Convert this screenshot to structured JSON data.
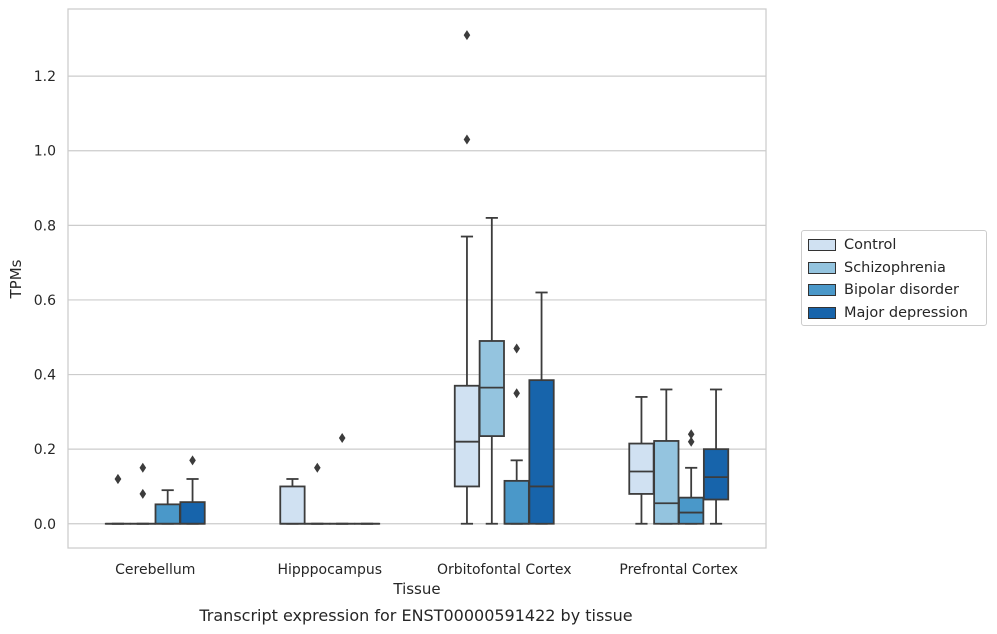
{
  "chart_data": {
    "type": "box",
    "title": "Transcript expression for ENST00000591422 by tissue",
    "xlabel": "Tissue",
    "ylabel": "TPMs",
    "ylim": [
      -0.065,
      1.38
    ],
    "yticks": [
      "0.0",
      "0.2",
      "0.4",
      "0.6",
      "0.8",
      "1.0",
      "1.2"
    ],
    "grid": true,
    "legend_position": "right",
    "categories": [
      "Cerebellum",
      "Hipppocampus",
      "Orbitofontal Cortex",
      "Prefrontal Cortex"
    ],
    "series": [
      {
        "name": "Control",
        "color": "#d0e1f2",
        "boxes": [
          {
            "q1": 0,
            "median": 0,
            "q3": 0,
            "whisker_low": 0,
            "whisker_high": 0,
            "outliers": [
              0.12,
              0.12
            ]
          },
          {
            "q1": 0,
            "median": 0,
            "q3": 0.1,
            "whisker_low": 0,
            "whisker_high": 0.12,
            "outliers": []
          },
          {
            "q1": 0.1,
            "median": 0.22,
            "q3": 0.37,
            "whisker_low": 0,
            "whisker_high": 0.77,
            "outliers": [
              1.03,
              1.31
            ]
          },
          {
            "q1": 0.08,
            "median": 0.14,
            "q3": 0.215,
            "whisker_low": 0,
            "whisker_high": 0.34,
            "outliers": []
          }
        ]
      },
      {
        "name": "Schizophrenia",
        "color": "#94c4df",
        "boxes": [
          {
            "q1": 0,
            "median": 0,
            "q3": 0,
            "whisker_low": 0,
            "whisker_high": 0,
            "outliers": [
              0.08,
              0.15
            ]
          },
          {
            "q1": 0,
            "median": 0,
            "q3": 0,
            "whisker_low": 0,
            "whisker_high": 0,
            "outliers": [
              0.15
            ]
          },
          {
            "q1": 0.235,
            "median": 0.365,
            "q3": 0.49,
            "whisker_low": 0,
            "whisker_high": 0.82,
            "outliers": []
          },
          {
            "q1": 0,
            "median": 0.055,
            "q3": 0.222,
            "whisker_low": 0,
            "whisker_high": 0.36,
            "outliers": []
          }
        ]
      },
      {
        "name": "Bipolar disorder",
        "color": "#4a98c9",
        "boxes": [
          {
            "q1": 0,
            "median": 0,
            "q3": 0.052,
            "whisker_low": 0,
            "whisker_high": 0.09,
            "outliers": []
          },
          {
            "q1": 0,
            "median": 0,
            "q3": 0,
            "whisker_low": 0,
            "whisker_high": 0,
            "outliers": [
              0.23
            ]
          },
          {
            "q1": 0,
            "median": 0,
            "q3": 0.115,
            "whisker_low": 0,
            "whisker_high": 0.17,
            "outliers": [
              0.35,
              0.47
            ]
          },
          {
            "q1": 0,
            "median": 0.03,
            "q3": 0.07,
            "whisker_low": 0,
            "whisker_high": 0.15,
            "outliers": [
              0.22,
              0.24
            ]
          }
        ]
      },
      {
        "name": "Major depression",
        "color": "#1764ab",
        "boxes": [
          {
            "q1": 0,
            "median": 0,
            "q3": 0.058,
            "whisker_low": 0,
            "whisker_high": 0.12,
            "outliers": [
              0.17
            ]
          },
          {
            "q1": 0,
            "median": 0,
            "q3": 0,
            "whisker_low": 0,
            "whisker_high": 0,
            "outliers": []
          },
          {
            "q1": 0,
            "median": 0.1,
            "q3": 0.385,
            "whisker_low": 0,
            "whisker_high": 0.62,
            "outliers": []
          },
          {
            "q1": 0.065,
            "median": 0.125,
            "q3": 0.2,
            "whisker_low": 0,
            "whisker_high": 0.36,
            "outliers": []
          }
        ]
      }
    ]
  }
}
